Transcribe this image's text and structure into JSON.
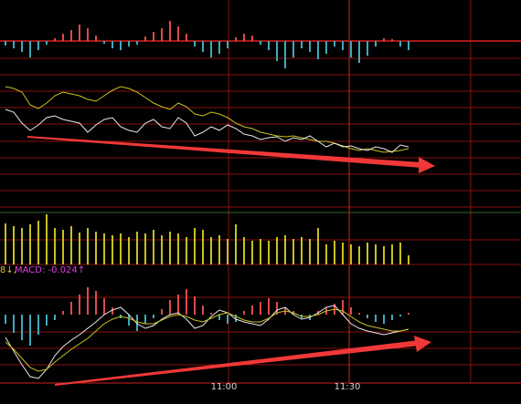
{
  "labels": {
    "macd_prefix": "8↓,",
    "macd": "MACD: -0.024↑"
  },
  "time_ticks": [
    "11:00",
    "11:30"
  ],
  "chart_data": [
    {
      "type": "bar",
      "color": "#e04a4a",
      "down_color": "#3fa9bc",
      "ylim": [
        -45,
        25
      ],
      "values": [
        -5,
        -8,
        -12,
        -18,
        -10,
        -4,
        3,
        8,
        12,
        18,
        14,
        6,
        -3,
        -8,
        -10,
        -6,
        -4,
        5,
        10,
        14,
        22,
        16,
        8,
        -6,
        -12,
        -18,
        -14,
        -8,
        4,
        8,
        6,
        -4,
        -10,
        -22,
        -30,
        -18,
        -8,
        -12,
        -20,
        -14,
        -6,
        -10,
        -18,
        -24,
        -16,
        -6,
        3,
        2,
        -6,
        -10
      ]
    },
    {
      "type": "line",
      "ylim": [
        0,
        90
      ],
      "series": [
        {
          "color": "#c8c020",
          "values": [
            80,
            78,
            74,
            60,
            56,
            62,
            70,
            74,
            72,
            70,
            66,
            64,
            70,
            76,
            80,
            78,
            74,
            68,
            62,
            58,
            55,
            62,
            58,
            50,
            48,
            52,
            50,
            46,
            40,
            36,
            34,
            30,
            28,
            26,
            25,
            26,
            24,
            22,
            20,
            20,
            18,
            15,
            12,
            10,
            12,
            10,
            8,
            9,
            10,
            12
          ]
        },
        {
          "color": "#e8e8e8",
          "values": [
            55,
            52,
            40,
            32,
            38,
            46,
            48,
            44,
            42,
            40,
            30,
            38,
            44,
            46,
            36,
            32,
            30,
            40,
            44,
            36,
            34,
            46,
            40,
            26,
            30,
            36,
            32,
            38,
            34,
            28,
            26,
            22,
            24,
            25,
            20,
            24,
            22,
            26,
            20,
            14,
            18,
            14,
            15,
            12,
            10,
            14,
            12,
            8,
            16,
            14
          ]
        }
      ]
    },
    {
      "type": "bar",
      "color": "#c8c020",
      "down_color": "#c8c020",
      "ylim": [
        0,
        70
      ],
      "values": [
        45,
        42,
        40,
        44,
        48,
        55,
        40,
        38,
        42,
        35,
        40,
        36,
        34,
        32,
        34,
        30,
        36,
        34,
        38,
        32,
        36,
        34,
        30,
        40,
        38,
        30,
        32,
        28,
        44,
        30,
        26,
        28,
        26,
        30,
        32,
        28,
        30,
        28,
        40,
        22,
        26,
        24,
        22,
        20,
        24,
        22,
        20,
        22,
        24,
        10
      ]
    },
    {
      "type": "bar",
      "color": "#e04a4a",
      "down_color": "#3fa9bc",
      "ylim": [
        -75,
        45
      ],
      "values": [
        -10,
        -20,
        -28,
        -34,
        -22,
        -12,
        -6,
        4,
        14,
        22,
        30,
        26,
        18,
        8,
        -4,
        -12,
        -18,
        -10,
        -4,
        6,
        16,
        22,
        28,
        20,
        10,
        2,
        -6,
        -10,
        -8,
        4,
        10,
        14,
        18,
        14,
        8,
        4,
        -4,
        -6,
        4,
        8,
        12,
        16,
        8,
        2,
        -4,
        -8,
        -10,
        -6,
        -2,
        2
      ]
    },
    {
      "type": "line",
      "ylim": [
        -75,
        45
      ],
      "series": [
        {
          "color": "#e8e8e8",
          "values": [
            -25,
            -40,
            -55,
            -68,
            -70,
            -60,
            -45,
            -35,
            -28,
            -22,
            -15,
            -8,
            0,
            5,
            8,
            0,
            -10,
            -15,
            -12,
            -5,
            0,
            2,
            -5,
            -15,
            -12,
            -2,
            5,
            2,
            -5,
            -8,
            -10,
            -12,
            -5,
            5,
            8,
            0,
            -5,
            -3,
            2,
            8,
            10,
            0,
            -10,
            -15,
            -18,
            -20,
            -22,
            -20,
            -18,
            -16
          ]
        },
        {
          "color": "#c8c020",
          "values": [
            -30,
            -38,
            -48,
            -58,
            -62,
            -60,
            -52,
            -45,
            -38,
            -32,
            -26,
            -18,
            -10,
            -5,
            -2,
            -4,
            -8,
            -10,
            -10,
            -6,
            -2,
            0,
            -2,
            -6,
            -8,
            -4,
            0,
            2,
            -2,
            -6,
            -8,
            -8,
            -4,
            2,
            4,
            2,
            -2,
            -2,
            0,
            4,
            6,
            4,
            -2,
            -8,
            -12,
            -14,
            -16,
            -18,
            -18,
            -16
          ]
        }
      ]
    }
  ]
}
